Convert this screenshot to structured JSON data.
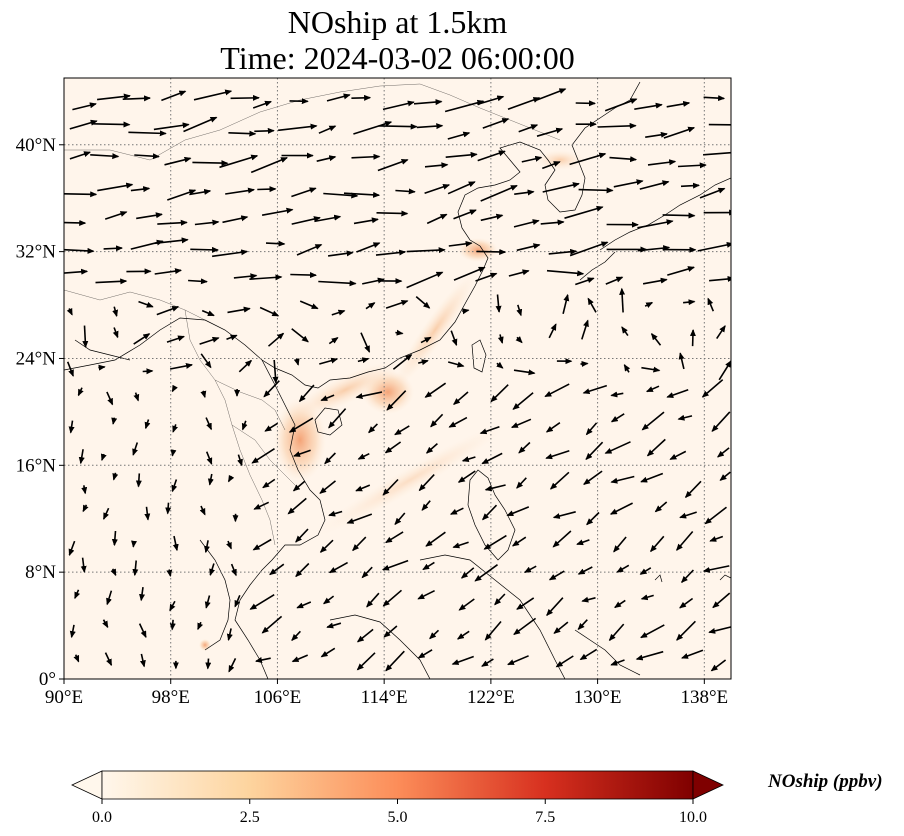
{
  "title": {
    "line1": "NOship at 1.5km",
    "line2": "Time: 2024-03-02 06:00:00"
  },
  "map": {
    "lon_range": [
      90,
      140
    ],
    "lat_range": [
      0,
      45
    ],
    "lon_ticks": [
      {
        "value": 90,
        "label": "90°E"
      },
      {
        "value": 98,
        "label": "98°E"
      },
      {
        "value": 106,
        "label": "106°E"
      },
      {
        "value": 114,
        "label": "114°E"
      },
      {
        "value": 122,
        "label": "122°E"
      },
      {
        "value": 130,
        "label": "130°E"
      },
      {
        "value": 138,
        "label": "138°E"
      }
    ],
    "lat_ticks": [
      {
        "value": 0,
        "label": "0°"
      },
      {
        "value": 8,
        "label": "8°N"
      },
      {
        "value": 16,
        "label": "16°N"
      },
      {
        "value": 24,
        "label": "24°N"
      },
      {
        "value": 32,
        "label": "32°N"
      },
      {
        "value": 40,
        "label": "40°N"
      }
    ],
    "grid": "dotted",
    "background_color": "#fff5eb",
    "field_colormap": "OrRd",
    "wind_vectors": "black arrows"
  },
  "colorbar": {
    "label": "NOship (ppbv)",
    "min": 0.0,
    "max": 10.0,
    "extend": "both",
    "ticks": [
      {
        "value": 0.0,
        "label": "0.0"
      },
      {
        "value": 2.5,
        "label": "2.5"
      },
      {
        "value": 5.0,
        "label": "5.0"
      },
      {
        "value": 7.5,
        "label": "7.5"
      },
      {
        "value": 10.0,
        "label": "10.0"
      }
    ]
  }
}
